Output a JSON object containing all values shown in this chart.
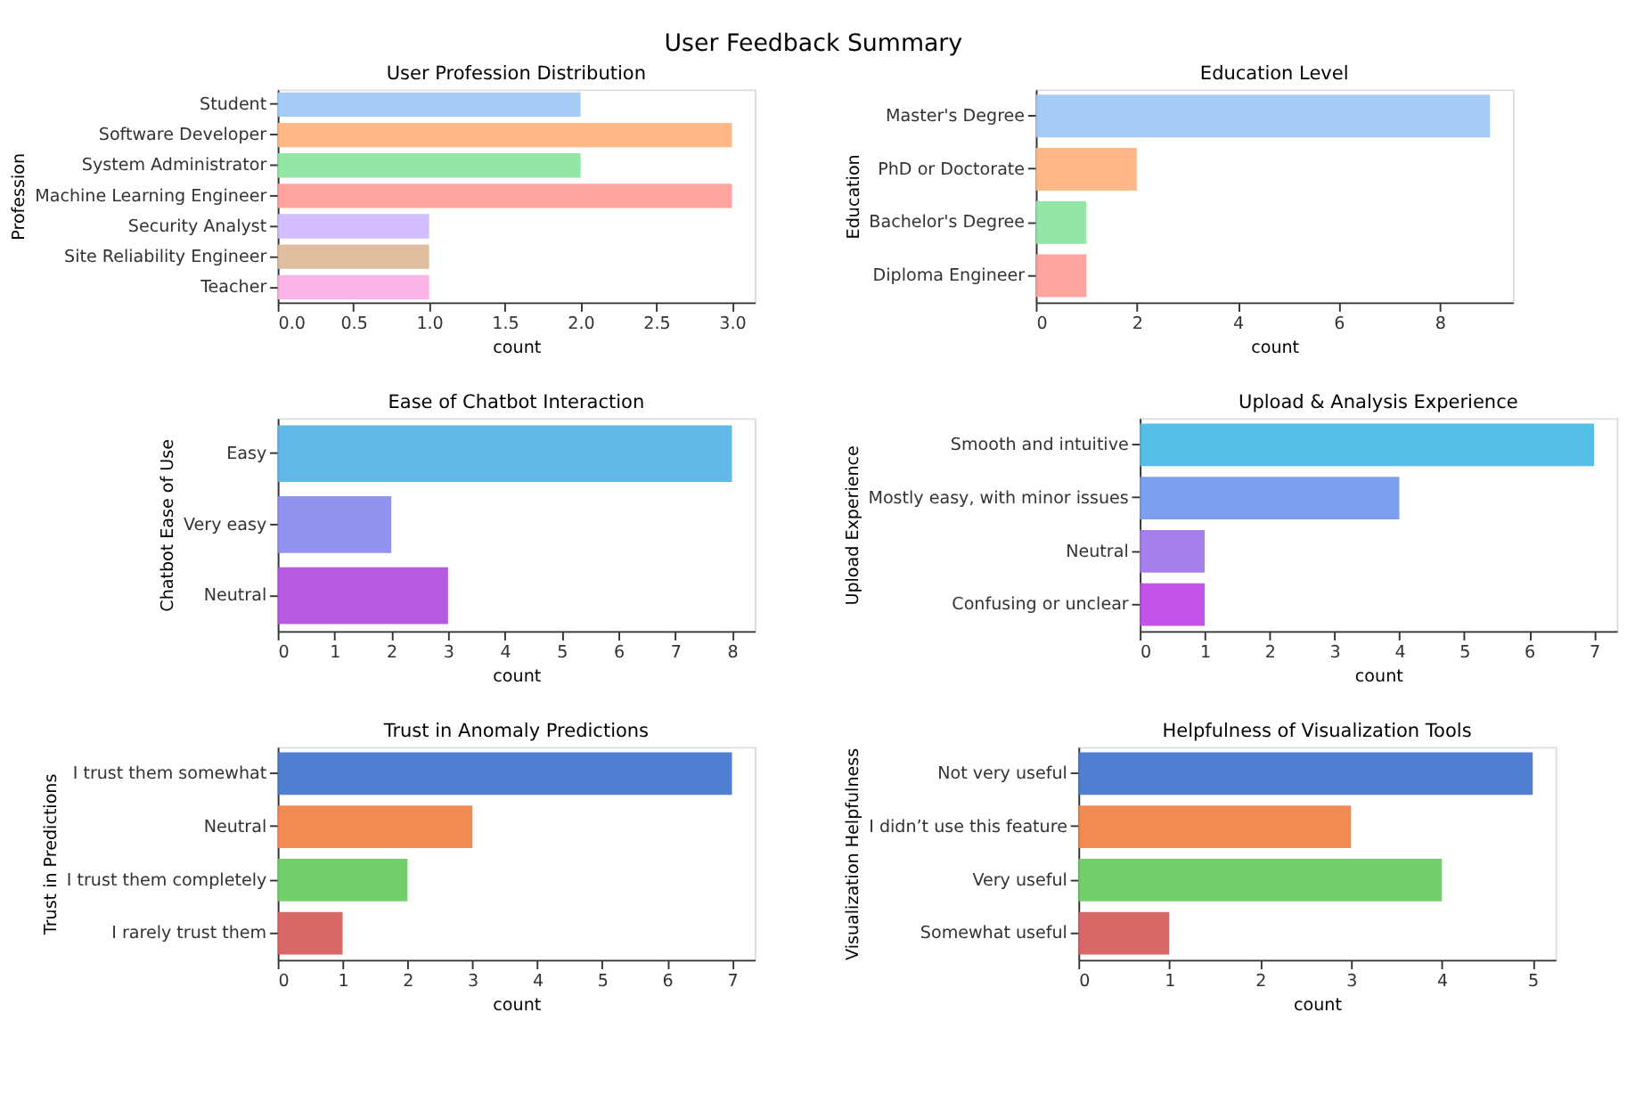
{
  "chart_data": [
    {
      "type": "bar",
      "orientation": "horizontal",
      "annotations": [
        "User Feedback Summary"
      ],
      "title": "User Profession Distribution",
      "xlabel": "count",
      "ylabel": "Profession",
      "categories": [
        "Student",
        "Software Developer",
        "System Administrator",
        "Machine Learning Engineer",
        "Security Analyst",
        "Site Reliability Engineer",
        "Teacher"
      ],
      "values": [
        2,
        3,
        2,
        3,
        1,
        1,
        1
      ],
      "colors": [
        "#a1c9f4",
        "#ffb482",
        "#8de5a1",
        "#ff9f9b",
        "#d0bbff",
        "#debb9b",
        "#fab0e4"
      ],
      "xlim": [
        0,
        3.15
      ],
      "xticks": [
        {
          "value": 0,
          "label": "0.0"
        },
        0.5,
        {
          "value": 1,
          "label": "1.0"
        },
        1.5,
        {
          "value": 2,
          "label": "2.0"
        },
        2.5,
        {
          "value": 3,
          "label": "3.0"
        }
      ],
      "grid": false
    },
    {
      "type": "bar",
      "orientation": "horizontal",
      "title": "Education Level",
      "xlabel": "count",
      "ylabel": "Education",
      "categories": [
        "Master's Degree",
        "PhD or Doctorate",
        "Bachelor's Degree",
        "Diploma Engineer"
      ],
      "values": [
        9,
        2,
        1,
        1
      ],
      "colors": [
        "#a1c9f4",
        "#ffb482",
        "#8de5a1",
        "#ff9f9b"
      ],
      "xlim": [
        0,
        9.45
      ],
      "xticks": [
        0,
        2,
        4,
        6,
        8
      ],
      "grid": false
    },
    {
      "type": "bar",
      "orientation": "horizontal",
      "title": "Ease of Chatbot Interaction",
      "xlabel": "count",
      "ylabel": "Chatbot Ease of Use",
      "categories": [
        "Easy",
        "Very easy",
        "Neutral"
      ],
      "values": [
        8,
        2,
        3
      ],
      "colors": [
        "#58b4e6",
        "#8c8cee",
        "#b251e0"
      ],
      "xlim": [
        0,
        8.4
      ],
      "xticks": [
        0,
        1,
        2,
        3,
        4,
        5,
        6,
        7,
        8
      ],
      "grid": false
    },
    {
      "type": "bar",
      "orientation": "horizontal",
      "title": "Upload & Analysis Experience",
      "xlabel": "count",
      "ylabel": "Upload Experience",
      "categories": [
        "Smooth and intuitive",
        "Mostly easy, with minor issues",
        "Neutral",
        "Confusing or unclear"
      ],
      "values": [
        7,
        4,
        1,
        1
      ],
      "colors": [
        "#4cbce6",
        "#7799ee",
        "#a078ea",
        "#c04ae8"
      ],
      "xlim": [
        0,
        7.35
      ],
      "xticks": [
        0,
        1,
        2,
        3,
        4,
        5,
        6,
        7
      ],
      "grid": false
    },
    {
      "type": "bar",
      "orientation": "horizontal",
      "title": "Trust in Anomaly Predictions",
      "xlabel": "count",
      "ylabel": "Trust in Predictions",
      "categories": [
        "I trust them somewhat",
        "Neutral",
        "I trust them completely",
        "I rarely trust them"
      ],
      "values": [
        7,
        3,
        2,
        1
      ],
      "colors": [
        "#4878d0",
        "#ee854a",
        "#6acc64",
        "#d65f5f"
      ],
      "xlim": [
        0,
        7.35
      ],
      "xticks": [
        0,
        1,
        2,
        3,
        4,
        5,
        6,
        7
      ],
      "grid": false
    },
    {
      "type": "bar",
      "orientation": "horizontal",
      "title": "Helpfulness of Visualization Tools",
      "xlabel": "count",
      "ylabel": "Visualization Helpfulness",
      "categories": [
        "Not very useful",
        "I didn’t use this feature",
        "Very useful",
        "Somewhat useful"
      ],
      "values": [
        5,
        3,
        4,
        1
      ],
      "colors": [
        "#4878d0",
        "#ee854a",
        "#6acc64",
        "#d65f5f"
      ],
      "xlim": [
        0,
        5.25
      ],
      "xticks": [
        0,
        1,
        2,
        3,
        4,
        5
      ],
      "grid": false
    }
  ]
}
